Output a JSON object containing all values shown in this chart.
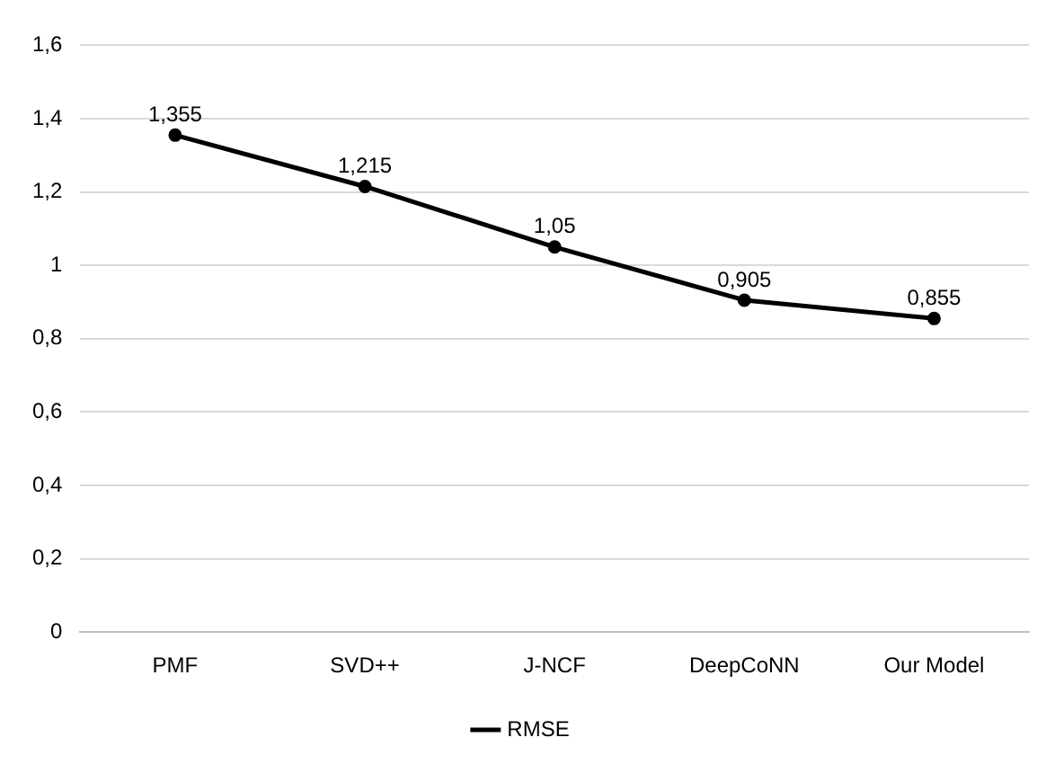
{
  "chart_data": {
    "type": "line",
    "categories": [
      "PMF",
      "SVD++",
      "J-NCF",
      "DeepCoNN",
      "Our Model"
    ],
    "series": [
      {
        "name": "RMSE",
        "color": "#000000",
        "values": [
          1.355,
          1.215,
          1.05,
          0.905,
          0.855
        ],
        "value_labels": [
          "1,355",
          "1,215",
          "1,05",
          "0,905",
          "0,855"
        ]
      }
    ],
    "ylim": [
      0,
      1.6
    ],
    "yticks": [
      0,
      {
        "value": 0.2,
        "label": "0,2"
      },
      {
        "value": 0.4,
        "label": "0,4"
      },
      {
        "value": 0.6,
        "label": "0,6"
      },
      {
        "value": 0.8,
        "label": "0,8"
      },
      1,
      {
        "value": 1.2,
        "label": "1,2"
      },
      {
        "value": 1.4,
        "label": "1,4"
      },
      {
        "value": 1.6,
        "label": "1,6"
      }
    ],
    "grid": "y",
    "legend": "bottom",
    "marker": "circle",
    "line_style": "solid"
  }
}
